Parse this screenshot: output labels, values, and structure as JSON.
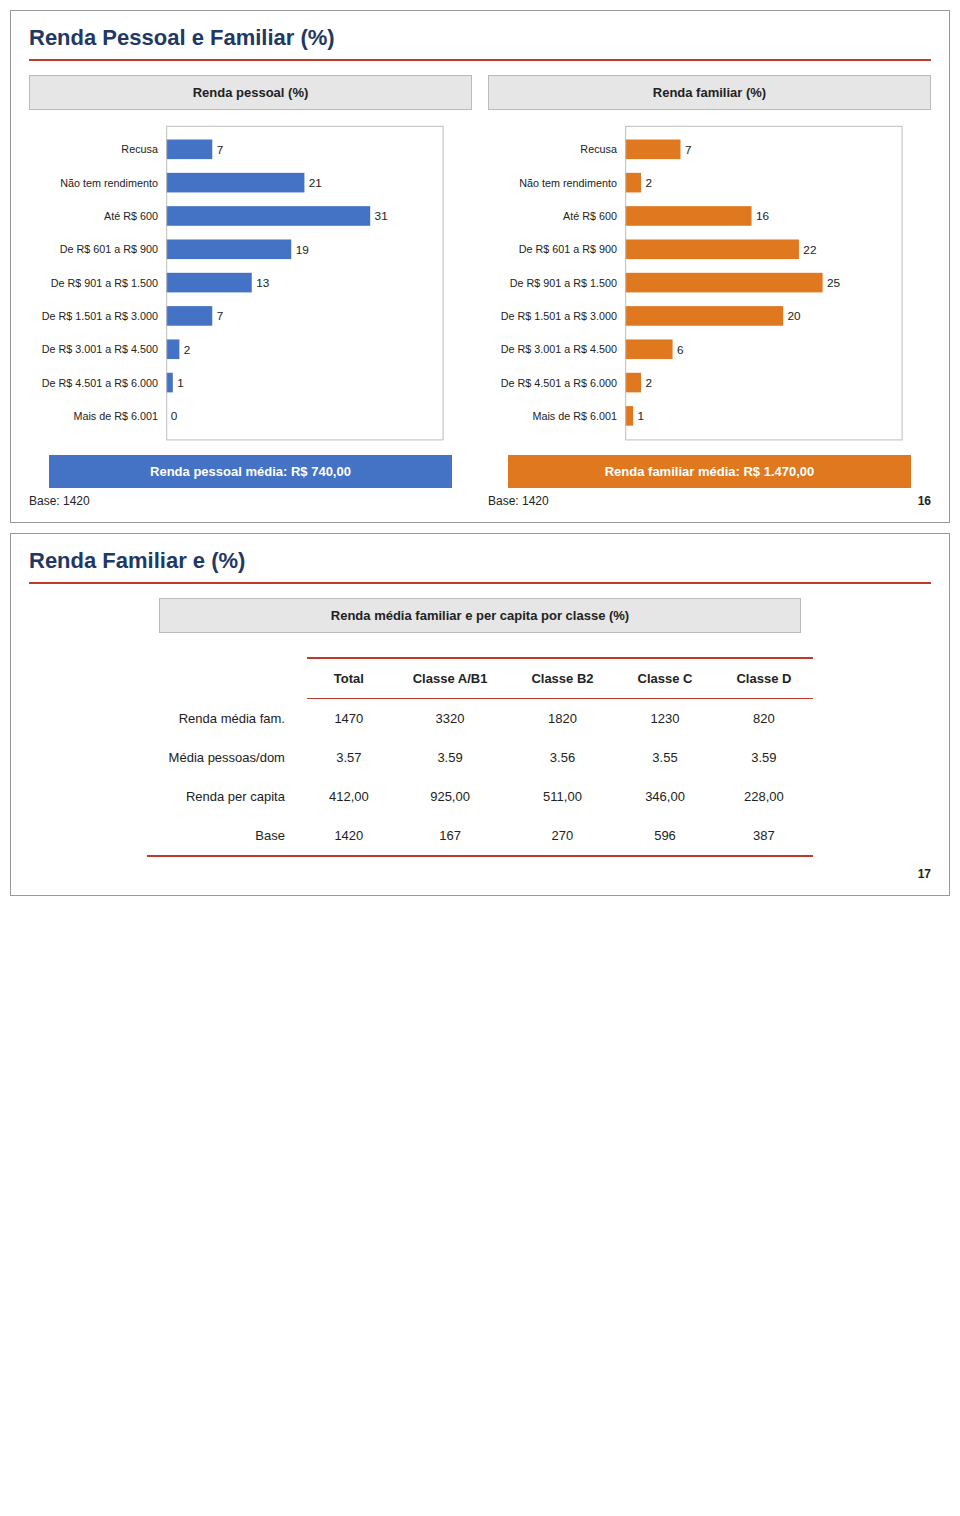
{
  "chart_data": [
    {
      "type": "bar",
      "title": "Renda Pessoal e Familiar (%)",
      "subtitle": "Renda pessoal (%)",
      "orientation": "horizontal",
      "categories": [
        "Recusa",
        "Não tem rendimento",
        "Até R$ 600",
        "De R$ 601 a R$ 900",
        "De R$ 901 a R$ 1.500",
        "De R$ 1.501 a R$ 3.000",
        "De R$ 3.001 a R$ 4.500",
        "De R$ 4.501 a R$ 6.000",
        "Mais de R$ 6.001"
      ],
      "values": [
        7,
        21,
        31,
        19,
        13,
        7,
        2,
        1,
        0
      ],
      "color": "#4472C4",
      "xlim": [
        0,
        42
      ],
      "tick_labels": "y",
      "data_labels": true,
      "grid": false,
      "annotations": [
        "Renda pessoal média: R$ 740,00",
        "Base: 1420"
      ]
    },
    {
      "type": "bar",
      "subtitle": "Renda familiar (%)",
      "orientation": "horizontal",
      "categories": [
        "Recusa",
        "Não tem rendimento",
        "Até R$ 600",
        "De R$ 601 a R$ 900",
        "De R$ 901 a R$ 1.500",
        "De R$ 1.501 a R$ 3.000",
        "De R$ 3.001 a R$ 4.500",
        "De R$ 4.501 a R$ 6.000",
        "Mais de R$ 6.001"
      ],
      "values": [
        7,
        2,
        16,
        22,
        25,
        20,
        6,
        2,
        1
      ],
      "color": "#E07820",
      "xlim": [
        0,
        35
      ],
      "tick_labels": "y",
      "data_labels": true,
      "grid": false,
      "annotations": [
        "Renda familiar média: R$ 1.470,00",
        "Base: 1420",
        "16"
      ]
    },
    {
      "type": "table",
      "title": "Renda Familiar e (%)",
      "subtitle": "Renda média familiar e per capita por classe  (%)",
      "columns": [
        "Total",
        "Classe A/B1",
        "Classe B2",
        "Classe C",
        "Classe D"
      ],
      "rows": [
        {
          "label": "Renda média fam.",
          "values": [
            "1470",
            "3320",
            "1820",
            "1230",
            "820"
          ]
        },
        {
          "label": "Média pessoas/dom",
          "values": [
            "3.57",
            "3.59",
            "3.56",
            "3.55",
            "3.59"
          ]
        },
        {
          "label": "Renda per capita",
          "values": [
            "412,00",
            "925,00",
            "511,00",
            "346,00",
            "228,00"
          ]
        },
        {
          "label": "Base",
          "values": [
            "1420",
            "167",
            "270",
            "596",
            "387"
          ]
        }
      ],
      "annotations": [
        "17"
      ]
    }
  ]
}
